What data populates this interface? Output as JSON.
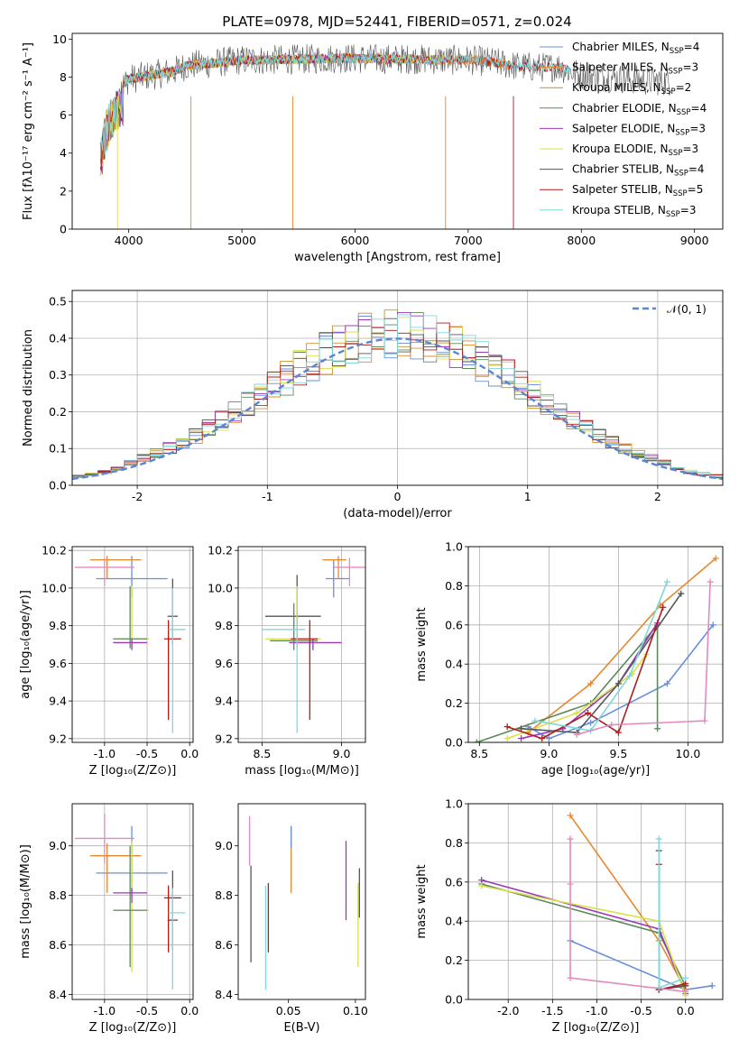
{
  "title": "PLATE=0978, MJD=52441, FIBERID=0571, z=0.024",
  "chart_data": [
    {
      "id": "spectrum",
      "type": "line",
      "xlabel": "wavelength [Angstrom, rest frame]",
      "ylabel": "Flux [fλ10⁻¹⁷ erg cm⁻² s⁻¹ A⁻¹]",
      "xlim": [
        3500,
        9250
      ],
      "ylim": [
        0,
        10.3
      ],
      "xticks": [
        4000,
        5000,
        6000,
        7000,
        8000,
        9000
      ],
      "yticks": [
        0,
        2,
        4,
        6,
        8,
        10
      ],
      "grid": false,
      "legend_position": "top-right",
      "continuum": {
        "x": [
          3750,
          3800,
          3900,
          4000,
          4100,
          4200,
          4300,
          4400,
          4500,
          4700,
          5000,
          5300,
          5600,
          5900,
          6200,
          6500,
          6800,
          7000,
          7200,
          7400,
          7600,
          7800,
          7900,
          8000,
          8200,
          8400,
          8600,
          8800
        ],
        "y": [
          4.6,
          6.2,
          7.3,
          7.9,
          8.0,
          8.1,
          8.2,
          8.3,
          8.6,
          8.7,
          8.9,
          8.9,
          8.95,
          9.0,
          8.95,
          8.95,
          8.9,
          8.9,
          8.8,
          8.6,
          8.5,
          8.55,
          8.3,
          8.1,
          8.0,
          7.9,
          7.8,
          7.8
        ]
      },
      "series": [
        {
          "name": "Chabrier MILES, N",
          "sub": "SSP",
          "eq": "=4",
          "color": "#6a8fd9",
          "xmax": 7400
        },
        {
          "name": "Salpeter MILES, N",
          "sub": "SSP",
          "eq": "=3",
          "color": "#e6892e",
          "xmax": 7400
        },
        {
          "name": "Kroupa MILES, N",
          "sub": "SSP",
          "eq": "=2",
          "color": "#c8902e",
          "xmax": 7400
        },
        {
          "name": "Chabrier ELODIE, N",
          "sub": "SSP",
          "eq": "=4",
          "color": "#5c8a5c",
          "xmax": 6800
        },
        {
          "name": "Salpeter ELODIE, N",
          "sub": "SSP",
          "eq": "=3",
          "color": "#9a38b8",
          "xmax": 6800
        },
        {
          "name": "Kroupa ELODIE, N",
          "sub": "SSP",
          "eq": "=3",
          "color": "#d8e04a",
          "xmax": 6800
        },
        {
          "name": "Chabrier STELIB, N",
          "sub": "SSP",
          "eq": "=4",
          "color": "#555555",
          "xmax": 8800
        },
        {
          "name": "Salpeter STELIB, N",
          "sub": "SSP",
          "eq": "=5",
          "color": "#b01c1c",
          "xmax": 7900
        },
        {
          "name": "Kroupa STELIB, N",
          "sub": "SSP",
          "eq": "=3",
          "color": "#7fd8dc",
          "xmax": 7900
        }
      ]
    },
    {
      "id": "residuals",
      "type": "step",
      "xlabel": "(data-model)/error",
      "ylabel": "Normed distribution",
      "xlim": [
        -2.5,
        2.5
      ],
      "ylim": [
        0,
        0.53
      ],
      "xticks": [
        -2,
        -1,
        0,
        1,
        2
      ],
      "yticks": [
        0.0,
        0.1,
        0.2,
        0.3,
        0.4,
        0.5
      ],
      "grid": true,
      "legend_position": "top-right",
      "gaussian_label": "𝒩(0, 1)",
      "gaussian_color": "#5b86d4",
      "bin_width": 0.1
    },
    {
      "id": "age_vs_Z",
      "type": "errorbar",
      "xlabel": "Z [log₁₀(Z/Z⊙)]",
      "ylabel": "age  [log₁₀(age/yr)]",
      "xlim": [
        -1.38,
        0.04
      ],
      "ylim": [
        9.18,
        10.22
      ],
      "xticks": [
        -1.0,
        -0.5,
        0.0
      ],
      "yticks": [
        9.2,
        9.4,
        9.6,
        9.8,
        10.0,
        10.2
      ],
      "grid": true,
      "points": [
        {
          "series": 0,
          "x": -0.68,
          "y": 10.05,
          "xerr": [
            0.42,
            0.42
          ],
          "yerr": [
            0.1,
            0.12
          ]
        },
        {
          "series": 1,
          "x": -0.97,
          "y": 10.15,
          "xerr": [
            0.2,
            0.4
          ],
          "yerr": [
            0.1,
            0.02
          ]
        },
        {
          "series": 6,
          "x": -0.2,
          "y": 9.85,
          "xerr": [
            0.06,
            0.06
          ],
          "yerr": [
            0.15,
            0.2
          ]
        },
        {
          "series": 5,
          "x": -0.68,
          "y": 9.73,
          "xerr": [
            0.2,
            0.2
          ],
          "yerr": [
            0.05,
            0.28
          ]
        },
        {
          "series": 3,
          "x": -0.7,
          "y": 9.73,
          "xerr": [
            0.2,
            0.2
          ],
          "yerr": [
            0.05,
            0.28
          ]
        },
        {
          "series": 4,
          "x": -0.68,
          "y": 9.71,
          "xerr": [
            0.22,
            0.18
          ],
          "yerr": [
            0.04,
            0.02
          ]
        },
        {
          "series": 7,
          "x": -0.25,
          "y": 9.73,
          "xerr": [
            0.05,
            0.15
          ],
          "yerr": [
            0.43,
            0.1
          ]
        },
        {
          "series": 8,
          "x": -0.2,
          "y": 9.78,
          "xerr": [
            0.05,
            0.15
          ],
          "yerr": [
            0.55,
            0.22
          ]
        },
        {
          "series": 9,
          "x": -1.0,
          "y": 10.11,
          "xerr": [
            0.35,
            0.35
          ],
          "yerr": [
            0.1,
            0.05
          ]
        }
      ]
    },
    {
      "id": "age_vs_mass",
      "type": "errorbar",
      "xlabel": "mass [log₁₀(M/M⊙)]",
      "ylabel": "",
      "xlim": [
        8.35,
        9.15
      ],
      "ylim": [
        9.18,
        10.22
      ],
      "xticks": [
        8.5,
        9.0
      ],
      "yticks": [
        9.2,
        9.4,
        9.6,
        9.8,
        10.0,
        10.2
      ],
      "grid": true,
      "points": [
        {
          "series": 0,
          "x": 8.95,
          "y": 10.05,
          "xerr": [
            0.05,
            0.1
          ],
          "yerr": [
            0.1,
            0.1
          ]
        },
        {
          "series": 1,
          "x": 8.98,
          "y": 10.15,
          "xerr": [
            0.1,
            0.05
          ],
          "yerr": [
            0.1,
            0.02
          ]
        },
        {
          "series": 6,
          "x": 8.72,
          "y": 9.85,
          "xerr": [
            0.2,
            0.15
          ],
          "yerr": [
            0.15,
            0.22
          ]
        },
        {
          "series": 5,
          "x": 8.72,
          "y": 9.73,
          "xerr": [
            0.2,
            0.15
          ],
          "yerr": [
            0.05,
            0.28
          ]
        },
        {
          "series": 3,
          "x": 8.7,
          "y": 9.72,
          "xerr": [
            0.15,
            0.15
          ],
          "yerr": [
            0.05,
            0.2
          ]
        },
        {
          "series": 4,
          "x": 8.82,
          "y": 9.71,
          "xerr": [
            0.15,
            0.18
          ],
          "yerr": [
            0.04,
            0.02
          ]
        },
        {
          "series": 7,
          "x": 8.8,
          "y": 9.73,
          "xerr": [
            0.12,
            0.05
          ],
          "yerr": [
            0.43,
            0.1
          ]
        },
        {
          "series": 8,
          "x": 8.72,
          "y": 9.78,
          "xerr": [
            0.22,
            0.05
          ],
          "yerr": [
            0.55,
            0.05
          ]
        },
        {
          "series": 9,
          "x": 9.05,
          "y": 10.11,
          "xerr": [
            0.1,
            0.1
          ],
          "yerr": [
            0.1,
            0.05
          ]
        }
      ]
    },
    {
      "id": "weight_vs_age",
      "type": "line",
      "xlabel": "age  [log₁₀(age/yr)]",
      "ylabel": "mass weight",
      "xlim": [
        8.42,
        10.25
      ],
      "ylim": [
        0,
        1
      ],
      "xticks": [
        8.5,
        9.0,
        9.5,
        10.0
      ],
      "yticks": [
        0.0,
        0.2,
        0.4,
        0.6,
        0.8,
        1.0
      ],
      "grid": true,
      "lines": [
        {
          "series": 0,
          "x": [
            8.85,
            9.0,
            9.3,
            9.85,
            10.18
          ],
          "y": [
            0.08,
            0.02,
            0.1,
            0.3,
            0.6
          ]
        },
        {
          "series": 1,
          "x": [
            8.85,
            9.3,
            9.8,
            10.2
          ],
          "y": [
            0.05,
            0.3,
            0.7,
            0.94
          ]
        },
        {
          "series": 3,
          "x": [
            8.48,
            9.3,
            9.78,
            9.78
          ],
          "y": [
            0.0,
            0.2,
            0.6,
            0.07
          ]
        },
        {
          "series": 4,
          "x": [
            8.8,
            9.1,
            9.5,
            9.78
          ],
          "y": [
            0.02,
            0.07,
            0.3,
            0.61
          ]
        },
        {
          "series": 5,
          "x": [
            8.7,
            9.2,
            9.6,
            9.7
          ],
          "y": [
            0.02,
            0.15,
            0.35,
            0.45
          ]
        },
        {
          "series": 6,
          "x": [
            8.8,
            9.2,
            9.5,
            9.95
          ],
          "y": [
            0.07,
            0.05,
            0.3,
            0.76
          ]
        },
        {
          "series": 7,
          "x": [
            8.7,
            8.95,
            9.28,
            9.5,
            9.82
          ],
          "y": [
            0.08,
            0.02,
            0.15,
            0.05,
            0.69
          ]
        },
        {
          "series": 8,
          "x": [
            8.9,
            9.3,
            9.58,
            9.85
          ],
          "y": [
            0.11,
            0.06,
            0.34,
            0.82
          ]
        },
        {
          "series": 9,
          "x": [
            9.2,
            9.45,
            10.12,
            10.16
          ],
          "y": [
            0.04,
            0.09,
            0.11,
            0.82
          ]
        }
      ]
    },
    {
      "id": "mass_vs_Z",
      "type": "errorbar",
      "xlabel": "Z [log₁₀(Z/Z⊙)]",
      "ylabel": "mass [log₁₀(M/M⊙)]",
      "xlim": [
        -1.38,
        0.04
      ],
      "ylim": [
        8.38,
        9.17
      ],
      "xticks": [
        -1.0,
        -0.5,
        0.0
      ],
      "yticks": [
        8.4,
        8.6,
        8.8,
        9.0
      ],
      "grid": true,
      "points": [
        {
          "series": 0,
          "x": -0.68,
          "y": 8.89,
          "xerr": [
            0.42,
            0.42
          ],
          "yerr": [
            0.08,
            0.19
          ]
        },
        {
          "series": 1,
          "x": -0.97,
          "y": 8.96,
          "xerr": [
            0.2,
            0.4
          ],
          "yerr": [
            0.15,
            0.05
          ]
        },
        {
          "series": 6,
          "x": -0.2,
          "y": 8.7,
          "xerr": [
            0.06,
            0.06
          ],
          "yerr": [
            0.12,
            0.2
          ]
        },
        {
          "series": 5,
          "x": -0.68,
          "y": 8.74,
          "xerr": [
            0.2,
            0.2
          ],
          "yerr": [
            0.25,
            0.28
          ]
        },
        {
          "series": 3,
          "x": -0.7,
          "y": 8.74,
          "xerr": [
            0.2,
            0.2
          ],
          "yerr": [
            0.23,
            0.26
          ]
        },
        {
          "series": 4,
          "x": -0.68,
          "y": 8.81,
          "xerr": [
            0.22,
            0.18
          ],
          "yerr": [
            0.04,
            0.02
          ]
        },
        {
          "series": 7,
          "x": -0.25,
          "y": 8.79,
          "xerr": [
            0.05,
            0.15
          ],
          "yerr": [
            0.22,
            0.05
          ]
        },
        {
          "series": 8,
          "x": -0.2,
          "y": 8.73,
          "xerr": [
            0.05,
            0.15
          ],
          "yerr": [
            0.31,
            0.1
          ]
        },
        {
          "series": 9,
          "x": -1.0,
          "y": 9.03,
          "xerr": [
            0.35,
            0.35
          ],
          "yerr": [
            0.1,
            0.1
          ]
        }
      ]
    },
    {
      "id": "mass_vs_EBV",
      "type": "errorbar",
      "xlabel": "E(B-V)",
      "ylabel": "",
      "xlim": [
        0.0125,
        0.1075
      ],
      "ylim": [
        8.38,
        9.17
      ],
      "xticks": [
        0.05,
        0.1
      ],
      "yticks": [
        8.4,
        8.6,
        8.8,
        9.0
      ],
      "grid": false,
      "points": [
        {
          "series": 9,
          "x": 0.021,
          "y": 9.0,
          "xerr": [
            0,
            0
          ],
          "yerr": [
            0.08,
            0.12
          ]
        },
        {
          "series": 6,
          "x": 0.022,
          "y": 8.7,
          "xerr": [
            0,
            0
          ],
          "yerr": [
            0.17,
            0.22
          ]
        },
        {
          "series": 8,
          "x": 0.033,
          "y": 8.6,
          "xerr": [
            0,
            0
          ],
          "yerr": [
            0.18,
            0.24
          ]
        },
        {
          "series": 7,
          "x": 0.035,
          "y": 8.7,
          "xerr": [
            0,
            0
          ],
          "yerr": [
            0.13,
            0.15
          ]
        },
        {
          "series": 1,
          "x": 0.052,
          "y": 8.94,
          "xerr": [
            0,
            0
          ],
          "yerr": [
            0.13,
            0.14
          ]
        },
        {
          "series": 0,
          "x": 0.052,
          "y": 9.03,
          "xerr": [
            0,
            0
          ],
          "yerr": [
            0.04,
            0.05
          ]
        },
        {
          "series": 4,
          "x": 0.093,
          "y": 8.86,
          "xerr": [
            0,
            0
          ],
          "yerr": [
            0.16,
            0.16
          ]
        },
        {
          "series": 5,
          "x": 0.102,
          "y": 8.68,
          "xerr": [
            0,
            0
          ],
          "yerr": [
            0.17,
            0.17
          ]
        },
        {
          "series": 6,
          "x": 0.103,
          "y": 8.8,
          "xerr": [
            0,
            0
          ],
          "yerr": [
            0.09,
            0.11
          ]
        }
      ]
    },
    {
      "id": "weight_vs_Z",
      "type": "line",
      "xlabel": "Z [log₁₀(Z/Z⊙)]",
      "ylabel": "mass weight",
      "xlim": [
        -2.45,
        0.42
      ],
      "ylim": [
        0,
        1
      ],
      "xticks": [
        -2.0,
        -1.5,
        -1.0,
        -0.5,
        0.0
      ],
      "yticks": [
        0.0,
        0.2,
        0.4,
        0.6,
        0.8,
        1.0
      ],
      "grid": true,
      "lines": [
        {
          "series": 0,
          "x": [
            -1.3,
            0.0,
            0.3
          ],
          "y": [
            0.3,
            0.05,
            0.07
          ]
        },
        {
          "series": 1,
          "x": [
            -1.3,
            -0.3,
            0.0
          ],
          "y": [
            0.94,
            0.3,
            0.05
          ]
        },
        {
          "series": 3,
          "x": [
            -2.3,
            -0.3,
            0.0
          ],
          "y": [
            0.59,
            0.34,
            0.07
          ]
        },
        {
          "series": 4,
          "x": [
            -2.3,
            -0.3,
            0.0
          ],
          "y": [
            0.61,
            0.36,
            0.03
          ]
        },
        {
          "series": 5,
          "x": [
            -2.3,
            -0.3,
            0.0
          ],
          "y": [
            0.58,
            0.4,
            0.02
          ]
        },
        {
          "series": 6,
          "x": [
            -0.3,
            -0.3,
            0.0
          ],
          "y": [
            0.76,
            0.05,
            0.07
          ]
        },
        {
          "series": 7,
          "x": [
            -0.3,
            -0.3,
            0.0
          ],
          "y": [
            0.69,
            0.05,
            0.08
          ]
        },
        {
          "series": 8,
          "x": [
            -0.3,
            -0.3,
            0.0
          ],
          "y": [
            0.82,
            0.06,
            0.11
          ]
        },
        {
          "series": 9,
          "x": [
            -1.3,
            -1.3,
            -1.3,
            0.0
          ],
          "y": [
            0.82,
            0.59,
            0.11,
            0.04
          ]
        }
      ]
    }
  ],
  "palette": [
    "#6a8fd9",
    "#e6892e",
    "#c8902e",
    "#5c8a5c",
    "#9a38b8",
    "#d8e04a",
    "#555555",
    "#b01c1c",
    "#7fd8dc",
    "#e28ac0"
  ]
}
